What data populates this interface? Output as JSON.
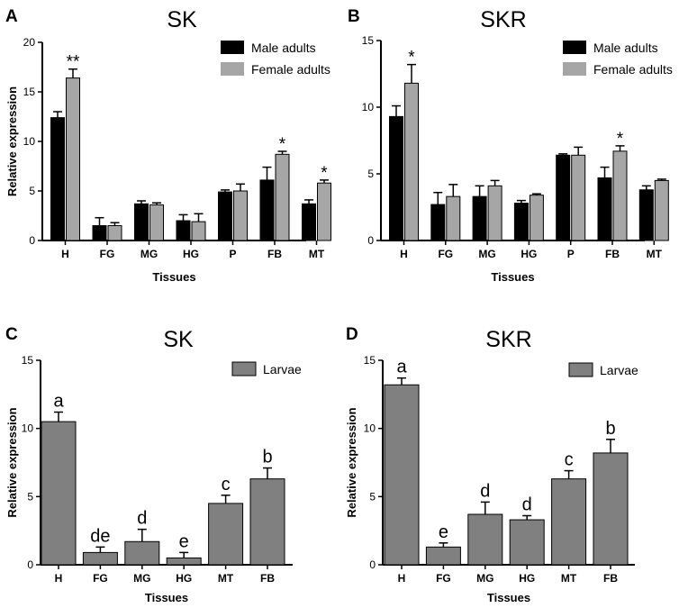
{
  "colors": {
    "male": "#000000",
    "female": "#a6a6a6",
    "larvae": "#808080",
    "axis": "#000000"
  },
  "chart_data": [
    {
      "panel": "A",
      "type": "bar",
      "title": "SK",
      "xlabel": "Tissues",
      "ylabel": "Relative expression",
      "ylim": [
        0,
        20
      ],
      "yticks": [
        0,
        5,
        10,
        15,
        20
      ],
      "categories": [
        "H",
        "FG",
        "MG",
        "HG",
        "P",
        "FB",
        "MT"
      ],
      "legend_position": "top-right",
      "series": [
        {
          "name": "Male adults",
          "color": "#000000",
          "values": [
            12.4,
            1.5,
            3.7,
            2.0,
            4.9,
            6.1,
            3.7
          ],
          "errors": [
            0.6,
            0.8,
            0.3,
            0.6,
            0.2,
            1.3,
            0.4
          ]
        },
        {
          "name": "Female adults",
          "color": "#a6a6a6",
          "values": [
            16.4,
            1.5,
            3.6,
            1.9,
            5.0,
            8.7,
            5.8
          ],
          "errors": [
            0.9,
            0.3,
            0.2,
            0.8,
            0.7,
            0.3,
            0.3
          ]
        }
      ],
      "annotations": [
        {
          "series": 1,
          "index": 0,
          "text": "**"
        },
        {
          "series": 1,
          "index": 5,
          "text": "*"
        },
        {
          "series": 1,
          "index": 6,
          "text": "*"
        }
      ]
    },
    {
      "panel": "B",
      "type": "bar",
      "title": "SKR",
      "xlabel": "Tissues",
      "ylabel": "",
      "ylim": [
        0,
        15
      ],
      "yticks": [
        0,
        5,
        10,
        15
      ],
      "categories": [
        "H",
        "FG",
        "MG",
        "HG",
        "P",
        "FB",
        "MT"
      ],
      "legend_position": "top-right",
      "series": [
        {
          "name": "Male adults",
          "color": "#000000",
          "values": [
            9.3,
            2.7,
            3.3,
            2.8,
            6.4,
            4.7,
            3.8
          ],
          "errors": [
            0.8,
            0.9,
            0.8,
            0.2,
            0.1,
            0.8,
            0.3
          ]
        },
        {
          "name": "Female adults",
          "color": "#a6a6a6",
          "values": [
            11.8,
            3.3,
            4.1,
            3.4,
            6.4,
            6.7,
            4.5
          ],
          "errors": [
            1.4,
            0.9,
            0.4,
            0.1,
            0.6,
            0.4,
            0.1
          ]
        }
      ],
      "annotations": [
        {
          "series": 1,
          "index": 0,
          "text": "*"
        },
        {
          "series": 1,
          "index": 5,
          "text": "*"
        }
      ]
    },
    {
      "panel": "C",
      "type": "bar",
      "title": "SK",
      "xlabel": "Tissues",
      "ylabel": "Relative expression",
      "ylim": [
        0,
        15
      ],
      "yticks": [
        0,
        5,
        10,
        15
      ],
      "categories": [
        "H",
        "FG",
        "MG",
        "HG",
        "MT",
        "FB"
      ],
      "legend_position": "top-right",
      "series": [
        {
          "name": "Larvae",
          "color": "#808080",
          "values": [
            10.5,
            0.9,
            1.7,
            0.5,
            4.5,
            6.3
          ],
          "errors": [
            0.7,
            0.4,
            0.9,
            0.4,
            0.6,
            0.8
          ]
        }
      ],
      "annotations": [
        {
          "series": 0,
          "index": 0,
          "text": "a"
        },
        {
          "series": 0,
          "index": 1,
          "text": "de"
        },
        {
          "series": 0,
          "index": 2,
          "text": "d"
        },
        {
          "series": 0,
          "index": 3,
          "text": "e"
        },
        {
          "series": 0,
          "index": 4,
          "text": "c"
        },
        {
          "series": 0,
          "index": 5,
          "text": "b"
        }
      ]
    },
    {
      "panel": "D",
      "type": "bar",
      "title": "SKR",
      "xlabel": "Tissues",
      "ylabel": "Relative expression",
      "ylim": [
        0,
        15
      ],
      "yticks": [
        0,
        5,
        10,
        15
      ],
      "categories": [
        "H",
        "FG",
        "MG",
        "HG",
        "MT",
        "FB"
      ],
      "legend_position": "top-right",
      "series": [
        {
          "name": "Larvae",
          "color": "#808080",
          "values": [
            13.2,
            1.3,
            3.7,
            3.3,
            6.3,
            8.2
          ],
          "errors": [
            0.5,
            0.3,
            0.9,
            0.3,
            0.6,
            1.0
          ]
        }
      ],
      "annotations": [
        {
          "series": 0,
          "index": 0,
          "text": "a"
        },
        {
          "series": 0,
          "index": 1,
          "text": "e"
        },
        {
          "series": 0,
          "index": 2,
          "text": "d"
        },
        {
          "series": 0,
          "index": 3,
          "text": "d"
        },
        {
          "series": 0,
          "index": 4,
          "text": "c"
        },
        {
          "series": 0,
          "index": 5,
          "text": "b"
        }
      ]
    }
  ]
}
